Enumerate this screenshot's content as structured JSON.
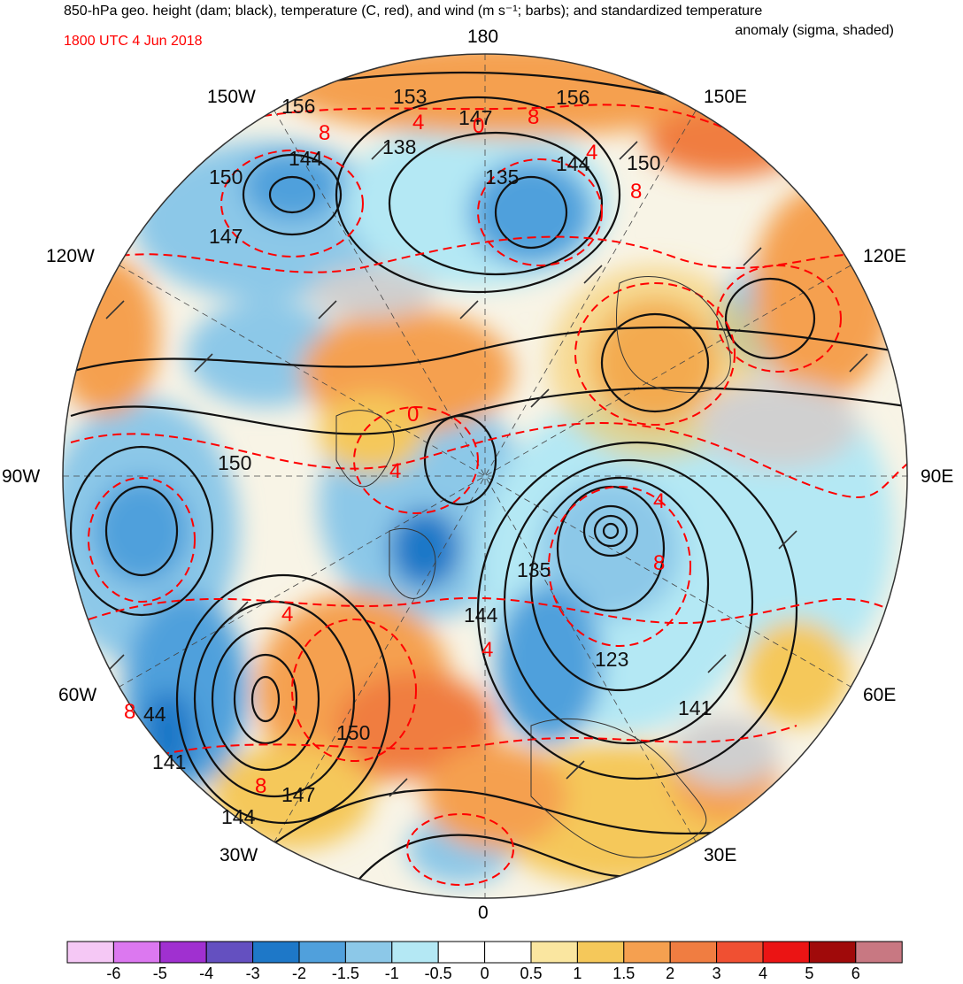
{
  "title": {
    "line1": "850-hPa geo. height (dam; black), temperature (C, red), and wind (m s⁻¹; barbs); and standardized temperature",
    "line2": "anomaly (sigma, shaded)",
    "valid_time": "1800 UTC 4 Jun 2018"
  },
  "longitude_labels": [
    "180",
    "150E",
    "120E",
    "90E",
    "60E",
    "30E",
    "0",
    "30W",
    "60W",
    "90W",
    "120W",
    "150W"
  ],
  "contour_labels": {
    "height": [
      "153",
      "156",
      "156",
      "147",
      "144",
      "138",
      "135",
      "150",
      "150",
      "144",
      "147",
      "150",
      "135",
      "144",
      "123",
      "141",
      "150",
      "147",
      "144",
      "141",
      "44"
    ],
    "temperature": [
      "8",
      "4",
      "0",
      "8",
      "4",
      "8",
      "4",
      "0",
      "4",
      "8",
      "4",
      "8",
      "8",
      "4"
    ]
  },
  "colorbar": {
    "ticks": [
      "-6",
      "-5",
      "-4",
      "-3",
      "-2",
      "-1.5",
      "-1",
      "-0.5",
      "0",
      "0.5",
      "1",
      "1.5",
      "2",
      "3",
      "4",
      "5",
      "6"
    ],
    "colors": [
      "#f5c8f5",
      "#dc78f0",
      "#a030d0",
      "#6450c0",
      "#1e78c8",
      "#50a0dc",
      "#8cc8e8",
      "#b4e8f4",
      "#ffffff",
      "#ffffff",
      "#fae6a0",
      "#f5c85a",
      "#f5a050",
      "#f07d41",
      "#f05032",
      "#eb1414",
      "#a00a0a",
      "#c87882"
    ]
  }
}
